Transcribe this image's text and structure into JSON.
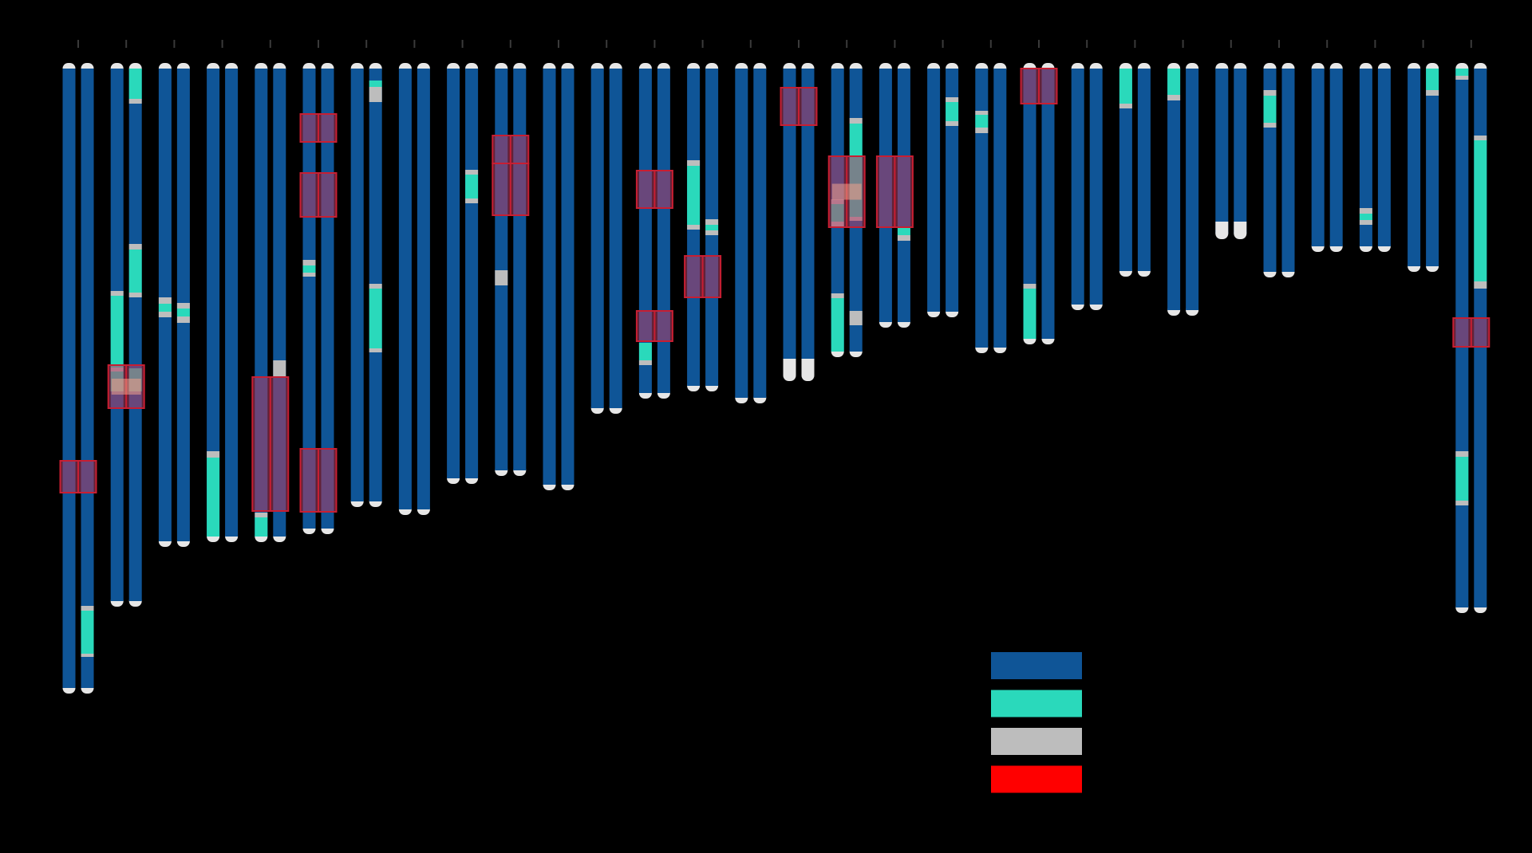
{
  "colors": {
    "background": "#000000",
    "tick": "#3a3a3a",
    "chromatid": "#0f5597",
    "cap": "#e6e6e6",
    "teal": "#2ad9bb",
    "gray": "#bdbdbd",
    "red_legend": "#ff0000",
    "highlight_fill": "#b43c64",
    "highlight_stroke": "#c81e32",
    "highlight_inner": "#f0a08c"
  },
  "legend": {
    "entries": [
      {
        "color": "#0f5597"
      },
      {
        "color": "#2ad9bb"
      },
      {
        "color": "#bdbdbd"
      },
      {
        "color": "#ff0000"
      }
    ]
  },
  "chromosomes": [
    {
      "length": 777,
      "left": [],
      "right": [
        {
          "type": "teal",
          "start": 678,
          "end": 734
        },
        {
          "type": "gray",
          "start": 734,
          "end": 738
        },
        {
          "type": "gray",
          "start": 674,
          "end": 680
        }
      ],
      "highlights": [
        {
          "start": 492,
          "end": 532
        }
      ]
    },
    {
      "length": 668,
      "left": [
        {
          "type": "gray",
          "start": 279,
          "end": 285
        },
        {
          "type": "teal",
          "start": 285,
          "end": 375
        },
        {
          "type": "gray",
          "start": 375,
          "end": 380
        },
        {
          "type": "teal",
          "start": 380,
          "end": 405
        }
      ],
      "right": [
        {
          "type": "teal",
          "start": 0,
          "end": 38
        },
        {
          "type": "gray",
          "start": 38,
          "end": 44
        },
        {
          "type": "gray",
          "start": 220,
          "end": 227
        },
        {
          "type": "teal",
          "start": 227,
          "end": 281
        },
        {
          "type": "gray",
          "start": 281,
          "end": 287
        },
        {
          "type": "teal",
          "start": 376,
          "end": 405
        }
      ],
      "highlights": [
        {
          "start": 372,
          "end": 426,
          "inner": true
        }
      ]
    },
    {
      "length": 593,
      "left": [
        {
          "type": "gray",
          "start": 287,
          "end": 295
        },
        {
          "type": "teal",
          "start": 295,
          "end": 305
        },
        {
          "type": "gray",
          "start": 305,
          "end": 312
        }
      ],
      "right": [
        {
          "type": "gray",
          "start": 294,
          "end": 301
        },
        {
          "type": "teal",
          "start": 301,
          "end": 311
        },
        {
          "type": "gray",
          "start": 311,
          "end": 319
        }
      ],
      "highlights": []
    },
    {
      "length": 587,
      "left": [
        {
          "type": "gray",
          "start": 480,
          "end": 488
        },
        {
          "type": "teal",
          "start": 488,
          "end": 587
        }
      ],
      "right": [],
      "highlights": []
    },
    {
      "length": 587,
      "left": [
        {
          "type": "gray",
          "start": 557,
          "end": 563
        },
        {
          "type": "teal",
          "start": 563,
          "end": 587
        }
      ],
      "right": [
        {
          "type": "gray",
          "start": 366,
          "end": 387
        }
      ],
      "highlights": [
        {
          "start": 387,
          "end": 555
        }
      ]
    },
    {
      "length": 577,
      "left": [
        {
          "type": "gray",
          "start": 240,
          "end": 247
        },
        {
          "type": "teal",
          "start": 247,
          "end": 256
        },
        {
          "type": "gray",
          "start": 256,
          "end": 261
        }
      ],
      "right": [],
      "highlights": [
        {
          "start": 57,
          "end": 92
        },
        {
          "start": 131,
          "end": 186
        },
        {
          "start": 477,
          "end": 556
        }
      ]
    },
    {
      "length": 543,
      "left": [],
      "right": [
        {
          "type": "teal",
          "start": 15,
          "end": 23
        },
        {
          "type": "gray",
          "start": 23,
          "end": 42
        },
        {
          "type": "gray",
          "start": 270,
          "end": 276
        },
        {
          "type": "teal",
          "start": 276,
          "end": 351
        },
        {
          "type": "gray",
          "start": 351,
          "end": 356
        }
      ],
      "highlights": []
    },
    {
      "length": 553,
      "left": [],
      "right": [],
      "highlights": []
    },
    {
      "length": 514,
      "left": [],
      "right": [
        {
          "type": "gray",
          "start": 127,
          "end": 133
        },
        {
          "type": "teal",
          "start": 133,
          "end": 163
        },
        {
          "type": "gray",
          "start": 163,
          "end": 169
        }
      ],
      "highlights": []
    },
    {
      "length": 504,
      "left": [
        {
          "type": "gray",
          "start": 253,
          "end": 272
        }
      ],
      "right": [],
      "highlights": [
        {
          "start": 84,
          "end": 119
        },
        {
          "start": 119,
          "end": 184
        }
      ]
    },
    {
      "length": 522,
      "left": [],
      "right": [],
      "highlights": []
    },
    {
      "length": 426,
      "left": [],
      "right": [],
      "highlights": []
    },
    {
      "length": 407,
      "left": [
        {
          "type": "teal",
          "start": 344,
          "end": 366
        },
        {
          "type": "gray",
          "start": 366,
          "end": 372
        }
      ],
      "right": [],
      "highlights": [
        {
          "start": 128,
          "end": 175
        },
        {
          "start": 304,
          "end": 342
        }
      ]
    },
    {
      "length": 398,
      "left": [
        {
          "type": "gray",
          "start": 115,
          "end": 122
        },
        {
          "type": "teal",
          "start": 122,
          "end": 196
        },
        {
          "type": "gray",
          "start": 196,
          "end": 202
        }
      ],
      "right": [
        {
          "type": "gray",
          "start": 189,
          "end": 196
        },
        {
          "type": "teal",
          "start": 196,
          "end": 203
        },
        {
          "type": "gray",
          "start": 203,
          "end": 209
        }
      ],
      "highlights": [
        {
          "start": 235,
          "end": 287
        }
      ]
    },
    {
      "length": 413,
      "left": [],
      "right": [],
      "highlights": []
    },
    {
      "length": 385,
      "left": [
        {
          "type": "cap",
          "start": 364,
          "end": 385
        }
      ],
      "right": [
        {
          "type": "cap",
          "start": 364,
          "end": 385
        }
      ],
      "highlights": [
        {
          "start": 24,
          "end": 71
        }
      ]
    },
    {
      "length": 355,
      "left": [
        {
          "type": "gray",
          "start": 164,
          "end": 170
        },
        {
          "type": "teal",
          "start": 170,
          "end": 192
        },
        {
          "type": "gray",
          "start": 192,
          "end": 198
        },
        {
          "type": "gray",
          "start": 282,
          "end": 288
        },
        {
          "type": "teal",
          "start": 288,
          "end": 355
        }
      ],
      "right": [
        {
          "type": "gray",
          "start": 62,
          "end": 69
        },
        {
          "type": "teal",
          "start": 69,
          "end": 186
        },
        {
          "type": "gray",
          "start": 186,
          "end": 191
        },
        {
          "type": "gray",
          "start": 304,
          "end": 322
        }
      ],
      "highlights": [
        {
          "start": 110,
          "end": 199,
          "inner": true
        }
      ]
    },
    {
      "length": 318,
      "left": [],
      "right": [
        {
          "type": "teal",
          "start": 199,
          "end": 209
        },
        {
          "type": "gray",
          "start": 209,
          "end": 216
        }
      ],
      "highlights": [
        {
          "start": 110,
          "end": 199
        }
      ]
    },
    {
      "length": 305,
      "left": [],
      "right": [
        {
          "type": "gray",
          "start": 36,
          "end": 42
        },
        {
          "type": "teal",
          "start": 42,
          "end": 66
        },
        {
          "type": "gray",
          "start": 66,
          "end": 72
        }
      ],
      "right_extra": [],
      "highlights": []
    },
    {
      "length": 350,
      "left": [
        {
          "type": "gray",
          "start": 53,
          "end": 58
        },
        {
          "type": "teal",
          "start": 58,
          "end": 74
        },
        {
          "type": "gray",
          "start": 74,
          "end": 81
        }
      ],
      "right": [],
      "highlights": []
    },
    {
      "length": 339,
      "left": [
        {
          "type": "gray",
          "start": 270,
          "end": 276
        },
        {
          "type": "teal",
          "start": 276,
          "end": 339
        }
      ],
      "right": [],
      "highlights": [
        {
          "start": 0,
          "end": 44
        }
      ]
    },
    {
      "length": 296,
      "left": [],
      "right": [],
      "highlights": []
    },
    {
      "length": 254,
      "left": [
        {
          "type": "teal",
          "start": 0,
          "end": 44
        },
        {
          "type": "gray",
          "start": 44,
          "end": 50
        }
      ],
      "right": [],
      "highlights": []
    },
    {
      "length": 303,
      "left": [
        {
          "type": "teal",
          "start": 0,
          "end": 33
        },
        {
          "type": "gray",
          "start": 33,
          "end": 40
        }
      ],
      "right": [],
      "highlights": []
    },
    {
      "length": 207,
      "left": [
        {
          "type": "cap",
          "start": 192,
          "end": 207
        }
      ],
      "right": [
        {
          "type": "cap",
          "start": 192,
          "end": 207
        }
      ],
      "highlights": []
    },
    {
      "length": 255,
      "left": [
        {
          "type": "gray",
          "start": 27,
          "end": 34
        },
        {
          "type": "teal",
          "start": 34,
          "end": 68
        },
        {
          "type": "gray",
          "start": 68,
          "end": 74
        }
      ],
      "right": [],
      "highlights": []
    },
    {
      "length": 223,
      "left": [],
      "right": [],
      "highlights": []
    },
    {
      "length": 223,
      "left": [
        {
          "type": "gray",
          "start": 175,
          "end": 182
        },
        {
          "type": "teal",
          "start": 182,
          "end": 190
        },
        {
          "type": "gray",
          "start": 190,
          "end": 196
        }
      ],
      "right": [],
      "highlights": []
    },
    {
      "length": 248,
      "left": [],
      "right": [
        {
          "type": "teal",
          "start": 0,
          "end": 27
        },
        {
          "type": "gray",
          "start": 27,
          "end": 34
        }
      ],
      "highlights": []
    },
    {
      "length": 676,
      "left": [
        {
          "type": "teal",
          "start": 0,
          "end": 9
        },
        {
          "type": "gray",
          "start": 9,
          "end": 14
        },
        {
          "type": "gray",
          "start": 480,
          "end": 487
        },
        {
          "type": "teal",
          "start": 487,
          "end": 542
        },
        {
          "type": "gray",
          "start": 542,
          "end": 548
        }
      ],
      "right": [
        {
          "type": "gray",
          "start": 84,
          "end": 90
        },
        {
          "type": "teal",
          "start": 90,
          "end": 267
        },
        {
          "type": "gray",
          "start": 267,
          "end": 276
        }
      ],
      "highlights": [
        {
          "start": 313,
          "end": 349
        }
      ]
    }
  ]
}
